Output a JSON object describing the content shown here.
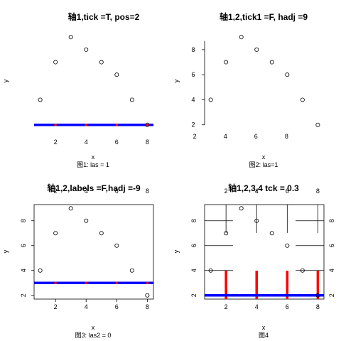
{
  "chart_data": [
    {
      "type": "scatter",
      "title": "轴1,tick =T, pos=2",
      "xlabel": "x",
      "ylabel": "y",
      "caption": "图1: las = 1",
      "points": [
        [
          1,
          4
        ],
        [
          2,
          7
        ],
        [
          3,
          9
        ],
        [
          4,
          8
        ],
        [
          5,
          7
        ],
        [
          6,
          6
        ],
        [
          7,
          4
        ],
        [
          8,
          2
        ]
      ],
      "xlim": [
        0.6,
        8.4
      ],
      "ylim": [
        1.7,
        9.3
      ],
      "x_ticks": [
        "2",
        "4",
        "6",
        "8"
      ],
      "y_ticks": [],
      "box": false,
      "axis_line_color": "#0000ff",
      "tick_mark_color": "#ff0000",
      "axis_line_y": 2
    },
    {
      "type": "scatter",
      "title": "轴1,2,tick1 =F, hadj =9",
      "xlabel": "x",
      "ylabel": "y",
      "caption": "图2: las=1",
      "points": [
        [
          1,
          4
        ],
        [
          2,
          7
        ],
        [
          3,
          9
        ],
        [
          4,
          8
        ],
        [
          5,
          7
        ],
        [
          6,
          6
        ],
        [
          7,
          4
        ],
        [
          8,
          2
        ]
      ],
      "xlim": [
        0.6,
        8.4
      ],
      "ylim": [
        1.7,
        9.3
      ],
      "x_ticks": [
        "2",
        "4",
        "6",
        "8"
      ],
      "y_ticks": [
        "2",
        "4",
        "6",
        "8"
      ],
      "box": false
    },
    {
      "type": "scatter",
      "title": "轴1,2,labels =F,hadj =-9",
      "xlabel": "x",
      "ylabel": "y",
      "caption": "图3: las2 = 0",
      "points": [
        [
          1,
          4
        ],
        [
          2,
          7
        ],
        [
          3,
          9
        ],
        [
          4,
          8
        ],
        [
          5,
          7
        ],
        [
          6,
          6
        ],
        [
          7,
          4
        ],
        [
          8,
          2
        ]
      ],
      "xlim": [
        0.6,
        8.4
      ],
      "ylim": [
        1.7,
        9.3
      ],
      "x_ticks": [
        "2",
        "4",
        "6",
        "8"
      ],
      "x_ticks_top": [
        "2",
        "4",
        "6",
        "8"
      ],
      "y_ticks": [
        "2",
        "4",
        "6",
        "8"
      ],
      "box": true,
      "axis_line_color": "#0000ff",
      "tick_mark_color": "#ff0000",
      "axis_line_y": 3
    },
    {
      "type": "scatter",
      "title": "轴1,2,3,4 tck = 0.3",
      "xlabel": "x",
      "ylabel": "y",
      "caption": "图4",
      "points": [
        [
          1,
          4
        ],
        [
          2,
          7
        ],
        [
          3,
          9
        ],
        [
          4,
          8
        ],
        [
          5,
          7
        ],
        [
          6,
          6
        ],
        [
          7,
          4
        ],
        [
          8,
          2
        ]
      ],
      "xlim": [
        0.6,
        8.4
      ],
      "ylim": [
        1.7,
        9.3
      ],
      "x_ticks": [
        "2",
        "4",
        "6",
        "8"
      ],
      "x_ticks_top": [
        "2",
        "4",
        "6",
        "8"
      ],
      "y_ticks": [
        "2",
        "4",
        "6",
        "8"
      ],
      "y_ticks_right": [
        "2",
        "4",
        "6",
        "8"
      ],
      "box": true,
      "tck": 0.3,
      "axis_line_color": "#0000ff",
      "tick_mark_color": "#ff0000",
      "axis_line_y": 2
    }
  ]
}
